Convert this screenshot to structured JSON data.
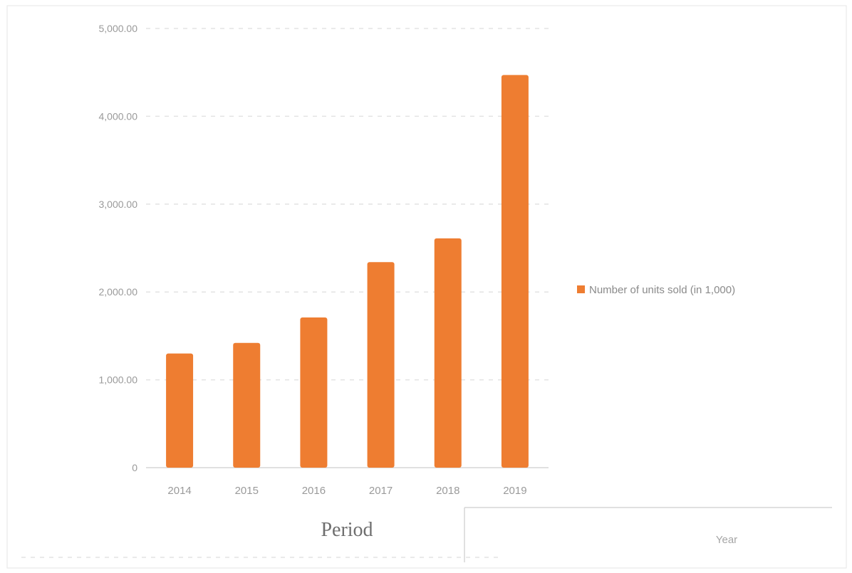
{
  "chart_data": {
    "type": "bar",
    "categories": [
      "2014",
      "2015",
      "2016",
      "2017",
      "2018",
      "2019"
    ],
    "values": [
      1300,
      1420,
      1710,
      2340,
      2610,
      4470
    ],
    "xlabel": "Period",
    "ylabel": "",
    "ylim": [
      0,
      5000
    ],
    "yticks": [
      "0",
      "1,000.00",
      "2,000.00",
      "3,000.00",
      "4,000.00",
      "5,000.00"
    ],
    "series": [
      {
        "values": [
          1300,
          1420,
          1710,
          2340,
          2610,
          4470
        ],
        "color": "#ee7d31"
      }
    ],
    "legend": {
      "label": "Number of units sold (in 1,000)",
      "position": "right",
      "color": "#ee7d31"
    },
    "table": {
      "label": "Year"
    },
    "grid": true
  }
}
